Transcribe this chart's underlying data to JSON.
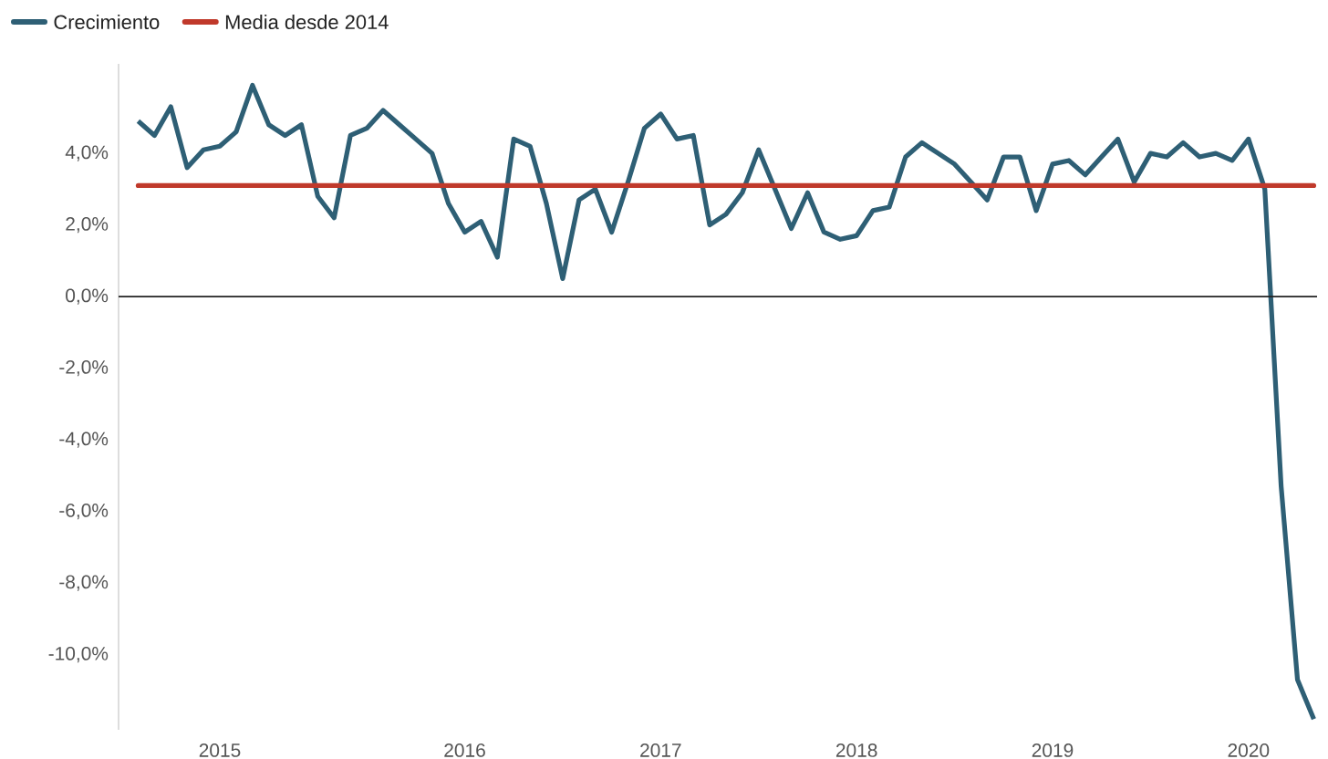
{
  "chart_data": {
    "type": "line",
    "categories": [
      null,
      null,
      null,
      null,
      null,
      "2015",
      null,
      null,
      null,
      null,
      null,
      null,
      null,
      null,
      null,
      null,
      null,
      null,
      null,
      null,
      "2016",
      null,
      null,
      null,
      null,
      null,
      null,
      null,
      null,
      null,
      null,
      null,
      "2017",
      null,
      null,
      null,
      null,
      null,
      null,
      null,
      null,
      null,
      null,
      null,
      "2018",
      null,
      null,
      null,
      null,
      null,
      null,
      null,
      null,
      null,
      null,
      null,
      "2019",
      null,
      null,
      null,
      null,
      null,
      null,
      null,
      null,
      null,
      null,
      null,
      "2020",
      null,
      null,
      null,
      null
    ],
    "series": [
      {
        "name": "Crecimiento",
        "color": "#2e5f75",
        "values": [
          4.9,
          4.5,
          5.3,
          3.6,
          4.1,
          4.2,
          4.6,
          5.9,
          4.8,
          4.5,
          4.8,
          2.8,
          2.2,
          4.5,
          4.7,
          5.2,
          4.8,
          4.4,
          4.0,
          2.6,
          1.8,
          2.1,
          1.1,
          4.4,
          4.2,
          2.6,
          0.5,
          2.7,
          3.0,
          1.8,
          3.2,
          4.7,
          5.1,
          4.4,
          4.5,
          2.0,
          2.3,
          2.9,
          4.1,
          3.0,
          1.9,
          2.9,
          1.8,
          1.6,
          1.7,
          2.4,
          2.5,
          3.9,
          4.3,
          4.0,
          3.7,
          3.2,
          2.7,
          3.9,
          3.9,
          2.4,
          3.7,
          3.8,
          3.4,
          3.9,
          4.4,
          3.2,
          4.0,
          3.9,
          4.3,
          3.9,
          4.0,
          3.8,
          4.4,
          3.0,
          -5.3,
          -10.7,
          -11.8
        ]
      }
    ],
    "ref_lines": [
      {
        "axis": "y",
        "value": 3.1,
        "label": "Media desde 2014",
        "color": "#c0392b"
      },
      {
        "axis": "y",
        "value": 0,
        "color": "#222222"
      }
    ],
    "ylim": [
      -12.1,
      6.5
    ],
    "yticks": [
      {
        "value": -10,
        "label": "-10,0%"
      },
      {
        "value": -8,
        "label": "-8,0%"
      },
      {
        "value": -6,
        "label": "-6,0%"
      },
      {
        "value": -4,
        "label": "-4,0%"
      },
      {
        "value": -2,
        "label": "-2,0%"
      },
      {
        "value": 0,
        "label": "0,0%"
      },
      {
        "value": 2,
        "label": "2,0%"
      },
      {
        "value": 4,
        "label": "4,0%"
      }
    ],
    "grid": false,
    "legend": "top left",
    "marker": "none",
    "line_style": "solid"
  }
}
